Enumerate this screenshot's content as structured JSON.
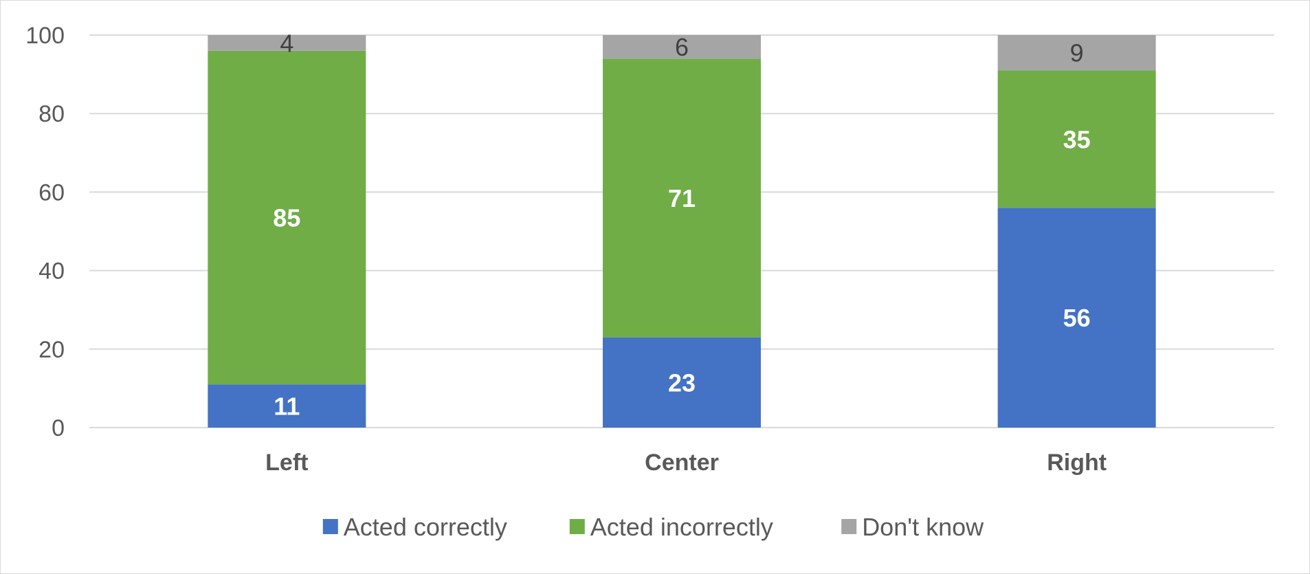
{
  "chart_data": {
    "type": "bar",
    "stacked": true,
    "title": "",
    "xlabel": "",
    "ylabel": "",
    "ylim": [
      0,
      100
    ],
    "yticks": [
      "0",
      "20",
      "40",
      "60",
      "80",
      "100"
    ],
    "grid": true,
    "legend_position": "bottom",
    "categories": [
      "Left",
      "Center",
      "Right"
    ],
    "series": [
      {
        "name": "Acted correctly",
        "color": "#4472c4",
        "values": [
          11,
          23,
          56
        ],
        "label_color": "#ffffff",
        "label_bold": true
      },
      {
        "name": "Acted incorrectly",
        "color": "#70ad47",
        "values": [
          85,
          71,
          35
        ],
        "label_color": "#ffffff",
        "label_bold": true
      },
      {
        "name": "Don't know",
        "color": "#a5a5a5",
        "values": [
          4,
          6,
          9
        ],
        "label_color": "#404040",
        "label_bold": false
      }
    ]
  }
}
